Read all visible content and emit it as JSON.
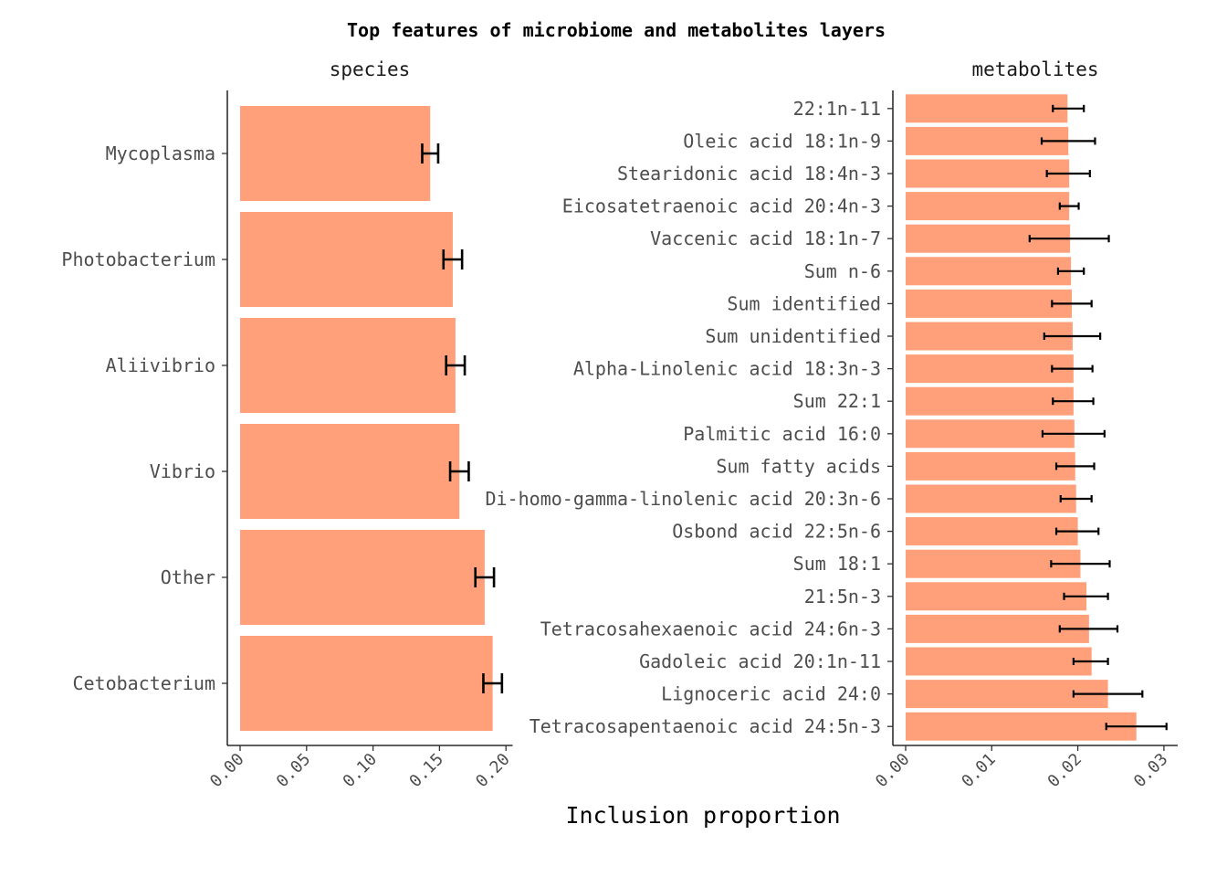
{
  "chart_data": {
    "title": "Top features of microbiome and metabolites layers",
    "xlabel": "Inclusion proportion",
    "bar_color": "#FFA07A",
    "panels": [
      {
        "type": "bar",
        "orientation": "horizontal",
        "title": "species",
        "xlim": [
          0,
          0.205
        ],
        "ticks": [
          0.0,
          0.05,
          0.1,
          0.15,
          0.2
        ],
        "tick_labels": [
          "0.00",
          "0.05",
          "0.10",
          "0.15",
          "0.20"
        ],
        "categories": [
          "Mycoplasma",
          "Photobacterium",
          "Aliivibrio",
          "Vibrio",
          "Other",
          "Cetobacterium"
        ],
        "values": [
          0.143,
          0.16,
          0.162,
          0.165,
          0.184,
          0.19
        ],
        "error_low": [
          0.137,
          0.153,
          0.155,
          0.158,
          0.177,
          0.183
        ],
        "error_high": [
          0.149,
          0.167,
          0.169,
          0.172,
          0.191,
          0.197
        ]
      },
      {
        "type": "bar",
        "orientation": "horizontal",
        "title": "metabolites",
        "xlim": [
          0,
          0.0316
        ],
        "ticks": [
          0.0,
          0.01,
          0.02,
          0.03
        ],
        "tick_labels": [
          "0.00",
          "0.01",
          "0.02",
          "0.03"
        ],
        "categories": [
          "22:1n-11",
          "Oleic acid 18:1n-9",
          "Stearidonic acid 18:4n-3",
          "Eicosatetraenoic acid 20:4n-3",
          "Vaccenic acid 18:1n-7",
          "Sum n-6",
          "Sum identified",
          "Sum unidentified",
          "Alpha-Linolenic acid 18:3n-3",
          "Sum 22:1",
          "Palmitic acid 16:0",
          "Sum fatty acids",
          "Di-homo-gamma-linolenic acid 20:3n-6",
          "Osbond acid 22:5n-6",
          "Sum 18:1",
          "21:5n-3",
          "Tetracosahexaenoic acid 24:6n-3",
          "Gadoleic acid 20:1n-11",
          "Lignoceric acid 24:0",
          "Tetracosapentaenoic acid 24:5n-3"
        ],
        "values": [
          0.0188,
          0.0189,
          0.019,
          0.019,
          0.0191,
          0.0192,
          0.0193,
          0.0194,
          0.0195,
          0.0195,
          0.0196,
          0.0197,
          0.0198,
          0.02,
          0.0203,
          0.021,
          0.0213,
          0.0216,
          0.0235,
          0.0268
        ],
        "error_low": [
          0.0171,
          0.0158,
          0.0164,
          0.0179,
          0.0144,
          0.0177,
          0.017,
          0.0161,
          0.017,
          0.0171,
          0.0159,
          0.0175,
          0.018,
          0.0175,
          0.0169,
          0.0184,
          0.0179,
          0.0195,
          0.0195,
          0.0233
        ],
        "error_high": [
          0.0207,
          0.022,
          0.0214,
          0.0201,
          0.0236,
          0.0207,
          0.0216,
          0.0226,
          0.0217,
          0.0218,
          0.0231,
          0.0219,
          0.0216,
          0.0224,
          0.0237,
          0.0235,
          0.0246,
          0.0235,
          0.0275,
          0.0303
        ]
      }
    ]
  }
}
